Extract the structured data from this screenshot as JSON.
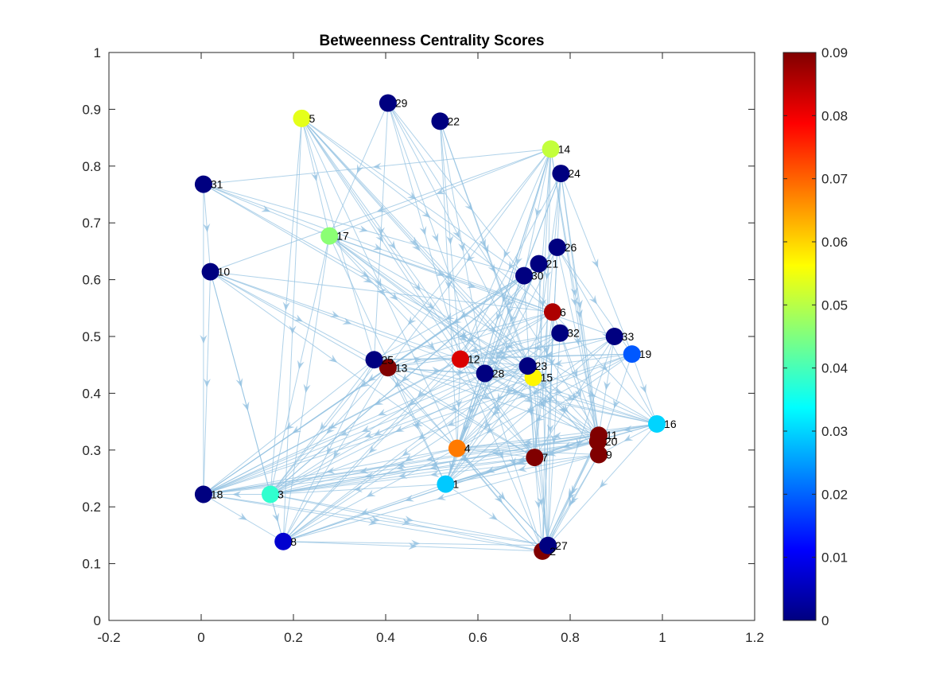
{
  "chart_data": {
    "type": "scatter",
    "title": "Betweenness Centrality Scores",
    "xlabel": "",
    "ylabel": "",
    "xlim": [
      -0.2,
      1.2
    ],
    "ylim": [
      0,
      1
    ],
    "x_ticks": [
      "-0.2",
      "0",
      "0.2",
      "0.4",
      "0.6",
      "0.8",
      "1",
      "1.2"
    ],
    "y_ticks": [
      "0",
      "0.1",
      "0.2",
      "0.3",
      "0.4",
      "0.5",
      "0.6",
      "0.7",
      "0.8",
      "0.9",
      "1"
    ],
    "colorbar": {
      "colormap": "jet",
      "range": [
        0,
        0.09
      ],
      "ticks": [
        "0",
        "0.01",
        "0.02",
        "0.03",
        "0.04",
        "0.05",
        "0.06",
        "0.07",
        "0.08",
        "0.09"
      ]
    },
    "edge_color": "#8fbfe0",
    "grid": false,
    "nodes": [
      {
        "id": "1",
        "x": 0.53,
        "y": 0.24,
        "score": 0.029
      },
      {
        "id": "2",
        "x": 0.74,
        "y": 0.122,
        "score": 0.09
      },
      {
        "id": "3",
        "x": 0.15,
        "y": 0.222,
        "score": 0.038
      },
      {
        "id": "4",
        "x": 0.555,
        "y": 0.303,
        "score": 0.068
      },
      {
        "id": "5",
        "x": 0.218,
        "y": 0.884,
        "score": 0.054
      },
      {
        "id": "6",
        "x": 0.762,
        "y": 0.543,
        "score": 0.086
      },
      {
        "id": "7",
        "x": 0.723,
        "y": 0.287,
        "score": 0.09
      },
      {
        "id": "8",
        "x": 0.178,
        "y": 0.139,
        "score": 0.007
      },
      {
        "id": "9",
        "x": 0.862,
        "y": 0.292,
        "score": 0.09
      },
      {
        "id": "10",
        "x": 0.02,
        "y": 0.614,
        "score": 0.0
      },
      {
        "id": "11",
        "x": 0.862,
        "y": 0.326,
        "score": 0.09
      },
      {
        "id": "12",
        "x": 0.562,
        "y": 0.46,
        "score": 0.082
      },
      {
        "id": "13",
        "x": 0.405,
        "y": 0.445,
        "score": 0.09
      },
      {
        "id": "14",
        "x": 0.758,
        "y": 0.83,
        "score": 0.051
      },
      {
        "id": "15",
        "x": 0.72,
        "y": 0.428,
        "score": 0.057
      },
      {
        "id": "16",
        "x": 0.988,
        "y": 0.346,
        "score": 0.03
      },
      {
        "id": "17",
        "x": 0.278,
        "y": 0.677,
        "score": 0.046
      },
      {
        "id": "18",
        "x": 0.005,
        "y": 0.222,
        "score": 0.0
      },
      {
        "id": "19",
        "x": 0.934,
        "y": 0.469,
        "score": 0.019
      },
      {
        "id": "20",
        "x": 0.86,
        "y": 0.315,
        "score": 0.09
      },
      {
        "id": "21",
        "x": 0.732,
        "y": 0.628,
        "score": 0.0
      },
      {
        "id": "22",
        "x": 0.518,
        "y": 0.879,
        "score": 0.0
      },
      {
        "id": "23",
        "x": 0.708,
        "y": 0.448,
        "score": 0.0
      },
      {
        "id": "24",
        "x": 0.78,
        "y": 0.787,
        "score": 0.0
      },
      {
        "id": "25",
        "x": 0.375,
        "y": 0.459,
        "score": 0.0
      },
      {
        "id": "26",
        "x": 0.772,
        "y": 0.657,
        "score": 0.0
      },
      {
        "id": "27",
        "x": 0.752,
        "y": 0.132,
        "score": 0.0
      },
      {
        "id": "28",
        "x": 0.615,
        "y": 0.435,
        "score": 0.0
      },
      {
        "id": "29",
        "x": 0.405,
        "y": 0.911,
        "score": 0.0
      },
      {
        "id": "30",
        "x": 0.7,
        "y": 0.607,
        "score": 0.0
      },
      {
        "id": "31",
        "x": 0.005,
        "y": 0.768,
        "score": 0.0
      },
      {
        "id": "32",
        "x": 0.778,
        "y": 0.506,
        "score": 0.0
      },
      {
        "id": "33",
        "x": 0.896,
        "y": 0.5,
        "score": 0.0
      }
    ],
    "edges": [
      [
        "5",
        "17"
      ],
      [
        "5",
        "25"
      ],
      [
        "5",
        "28"
      ],
      [
        "5",
        "23"
      ],
      [
        "5",
        "15"
      ],
      [
        "5",
        "6"
      ],
      [
        "5",
        "4"
      ],
      [
        "5",
        "3"
      ],
      [
        "5",
        "8"
      ],
      [
        "5",
        "12"
      ],
      [
        "5",
        "30"
      ],
      [
        "5",
        "7"
      ],
      [
        "5",
        "11"
      ],
      [
        "29",
        "25"
      ],
      [
        "29",
        "12"
      ],
      [
        "29",
        "23"
      ],
      [
        "29",
        "6"
      ],
      [
        "29",
        "28"
      ],
      [
        "29",
        "17"
      ],
      [
        "29",
        "11"
      ],
      [
        "22",
        "12"
      ],
      [
        "22",
        "28"
      ],
      [
        "22",
        "4"
      ],
      [
        "22",
        "23"
      ],
      [
        "22",
        "15"
      ],
      [
        "14",
        "17"
      ],
      [
        "14",
        "31"
      ],
      [
        "14",
        "12"
      ],
      [
        "14",
        "4"
      ],
      [
        "14",
        "1"
      ],
      [
        "14",
        "3"
      ],
      [
        "14",
        "28"
      ],
      [
        "14",
        "15"
      ],
      [
        "14",
        "7"
      ],
      [
        "14",
        "11"
      ],
      [
        "14",
        "9"
      ],
      [
        "14",
        "13"
      ],
      [
        "14",
        "10"
      ],
      [
        "14",
        "2"
      ],
      [
        "14",
        "30"
      ],
      [
        "24",
        "12"
      ],
      [
        "24",
        "4"
      ],
      [
        "24",
        "7"
      ],
      [
        "24",
        "15"
      ],
      [
        "24",
        "11"
      ],
      [
        "24",
        "9"
      ],
      [
        "24",
        "2"
      ],
      [
        "24",
        "19"
      ],
      [
        "24",
        "28"
      ],
      [
        "31",
        "10"
      ],
      [
        "31",
        "18"
      ],
      [
        "31",
        "15"
      ],
      [
        "31",
        "6"
      ],
      [
        "31",
        "17"
      ],
      [
        "31",
        "30"
      ],
      [
        "31",
        "23"
      ],
      [
        "10",
        "18"
      ],
      [
        "10",
        "3"
      ],
      [
        "10",
        "28"
      ],
      [
        "10",
        "4"
      ],
      [
        "10",
        "13"
      ],
      [
        "10",
        "8"
      ],
      [
        "10",
        "7"
      ],
      [
        "10",
        "12"
      ],
      [
        "17",
        "8"
      ],
      [
        "17",
        "3"
      ],
      [
        "17",
        "12"
      ],
      [
        "17",
        "15"
      ],
      [
        "17",
        "7"
      ],
      [
        "17",
        "11"
      ],
      [
        "17",
        "20"
      ],
      [
        "17",
        "16"
      ],
      [
        "17",
        "6"
      ],
      [
        "17",
        "33"
      ],
      [
        "17",
        "1"
      ],
      [
        "21",
        "1"
      ],
      [
        "21",
        "4"
      ],
      [
        "21",
        "3"
      ],
      [
        "21",
        "18"
      ],
      [
        "21",
        "28"
      ],
      [
        "21",
        "13"
      ],
      [
        "21",
        "27"
      ],
      [
        "26",
        "8"
      ],
      [
        "26",
        "4"
      ],
      [
        "26",
        "11"
      ],
      [
        "26",
        "2"
      ],
      [
        "26",
        "19"
      ],
      [
        "26",
        "16"
      ],
      [
        "26",
        "12"
      ],
      [
        "30",
        "13"
      ],
      [
        "30",
        "25"
      ],
      [
        "30",
        "18"
      ],
      [
        "30",
        "3"
      ],
      [
        "30",
        "7"
      ],
      [
        "30",
        "1"
      ],
      [
        "6",
        "18"
      ],
      [
        "6",
        "3"
      ],
      [
        "6",
        "13"
      ],
      [
        "6",
        "1"
      ],
      [
        "6",
        "7"
      ],
      [
        "6",
        "11"
      ],
      [
        "6",
        "16"
      ],
      [
        "6",
        "25"
      ],
      [
        "6",
        "10"
      ],
      [
        "6",
        "27"
      ],
      [
        "32",
        "18"
      ],
      [
        "32",
        "8"
      ],
      [
        "32",
        "13"
      ],
      [
        "32",
        "9"
      ],
      [
        "32",
        "27"
      ],
      [
        "32",
        "4"
      ],
      [
        "32",
        "12"
      ],
      [
        "33",
        "12"
      ],
      [
        "33",
        "4"
      ],
      [
        "33",
        "11"
      ],
      [
        "33",
        "2"
      ],
      [
        "33",
        "1"
      ],
      [
        "33",
        "28"
      ],
      [
        "33",
        "13"
      ],
      [
        "33",
        "7"
      ],
      [
        "19",
        "12"
      ],
      [
        "19",
        "25"
      ],
      [
        "19",
        "4"
      ],
      [
        "19",
        "9"
      ],
      [
        "19",
        "16"
      ],
      [
        "19",
        "28"
      ],
      [
        "19",
        "18"
      ],
      [
        "19",
        "3"
      ],
      [
        "19",
        "1"
      ],
      [
        "25",
        "12"
      ],
      [
        "25",
        "18"
      ],
      [
        "25",
        "3"
      ],
      [
        "25",
        "8"
      ],
      [
        "25",
        "7"
      ],
      [
        "25",
        "11"
      ],
      [
        "25",
        "16"
      ],
      [
        "25",
        "27"
      ],
      [
        "13",
        "28"
      ],
      [
        "13",
        "3"
      ],
      [
        "13",
        "8"
      ],
      [
        "13",
        "1"
      ],
      [
        "13",
        "18"
      ],
      [
        "13",
        "16"
      ],
      [
        "13",
        "15"
      ],
      [
        "13",
        "2"
      ],
      [
        "12",
        "23"
      ],
      [
        "12",
        "28"
      ],
      [
        "12",
        "4"
      ],
      [
        "12",
        "7"
      ],
      [
        "12",
        "16"
      ],
      [
        "12",
        "2"
      ],
      [
        "12",
        "15"
      ],
      [
        "12",
        "20"
      ],
      [
        "12",
        "8"
      ],
      [
        "12",
        "18"
      ],
      [
        "28",
        "4"
      ],
      [
        "28",
        "18"
      ],
      [
        "28",
        "3"
      ],
      [
        "28",
        "11"
      ],
      [
        "28",
        "16"
      ],
      [
        "28",
        "2"
      ],
      [
        "28",
        "1"
      ],
      [
        "23",
        "3"
      ],
      [
        "23",
        "18"
      ],
      [
        "23",
        "1"
      ],
      [
        "23",
        "9"
      ],
      [
        "23",
        "16"
      ],
      [
        "23",
        "27"
      ],
      [
        "23",
        "8"
      ],
      [
        "23",
        "7"
      ],
      [
        "15",
        "18"
      ],
      [
        "15",
        "8"
      ],
      [
        "15",
        "20"
      ],
      [
        "15",
        "27"
      ],
      [
        "15",
        "4"
      ],
      [
        "15",
        "1"
      ],
      [
        "16",
        "4"
      ],
      [
        "16",
        "7"
      ],
      [
        "16",
        "1"
      ],
      [
        "16",
        "3"
      ],
      [
        "16",
        "18"
      ],
      [
        "16",
        "9"
      ],
      [
        "16",
        "11"
      ],
      [
        "16",
        "27"
      ],
      [
        "11",
        "18"
      ],
      [
        "11",
        "3"
      ],
      [
        "11",
        "8"
      ],
      [
        "11",
        "1"
      ],
      [
        "11",
        "4"
      ],
      [
        "11",
        "9"
      ],
      [
        "11",
        "2"
      ],
      [
        "11",
        "27"
      ],
      [
        "11",
        "7"
      ],
      [
        "20",
        "18"
      ],
      [
        "20",
        "1"
      ],
      [
        "20",
        "4"
      ],
      [
        "20",
        "3"
      ],
      [
        "20",
        "2"
      ],
      [
        "9",
        "1"
      ],
      [
        "9",
        "3"
      ],
      [
        "9",
        "8"
      ],
      [
        "9",
        "2"
      ],
      [
        "9",
        "27"
      ],
      [
        "9",
        "4"
      ],
      [
        "7",
        "18"
      ],
      [
        "7",
        "8"
      ],
      [
        "7",
        "4"
      ],
      [
        "7",
        "3"
      ],
      [
        "7",
        "2"
      ],
      [
        "7",
        "27"
      ],
      [
        "7",
        "1"
      ],
      [
        "4",
        "18"
      ],
      [
        "4",
        "3"
      ],
      [
        "4",
        "8"
      ],
      [
        "4",
        "1"
      ],
      [
        "4",
        "27"
      ],
      [
        "4",
        "2"
      ],
      [
        "1",
        "8"
      ],
      [
        "1",
        "2"
      ],
      [
        "1",
        "3"
      ],
      [
        "3",
        "8"
      ],
      [
        "3",
        "27"
      ],
      [
        "3",
        "2"
      ],
      [
        "3",
        "18"
      ],
      [
        "18",
        "27"
      ],
      [
        "18",
        "8"
      ],
      [
        "18",
        "2"
      ],
      [
        "8",
        "27"
      ],
      [
        "8",
        "2"
      ],
      [
        "27",
        "2"
      ]
    ]
  }
}
